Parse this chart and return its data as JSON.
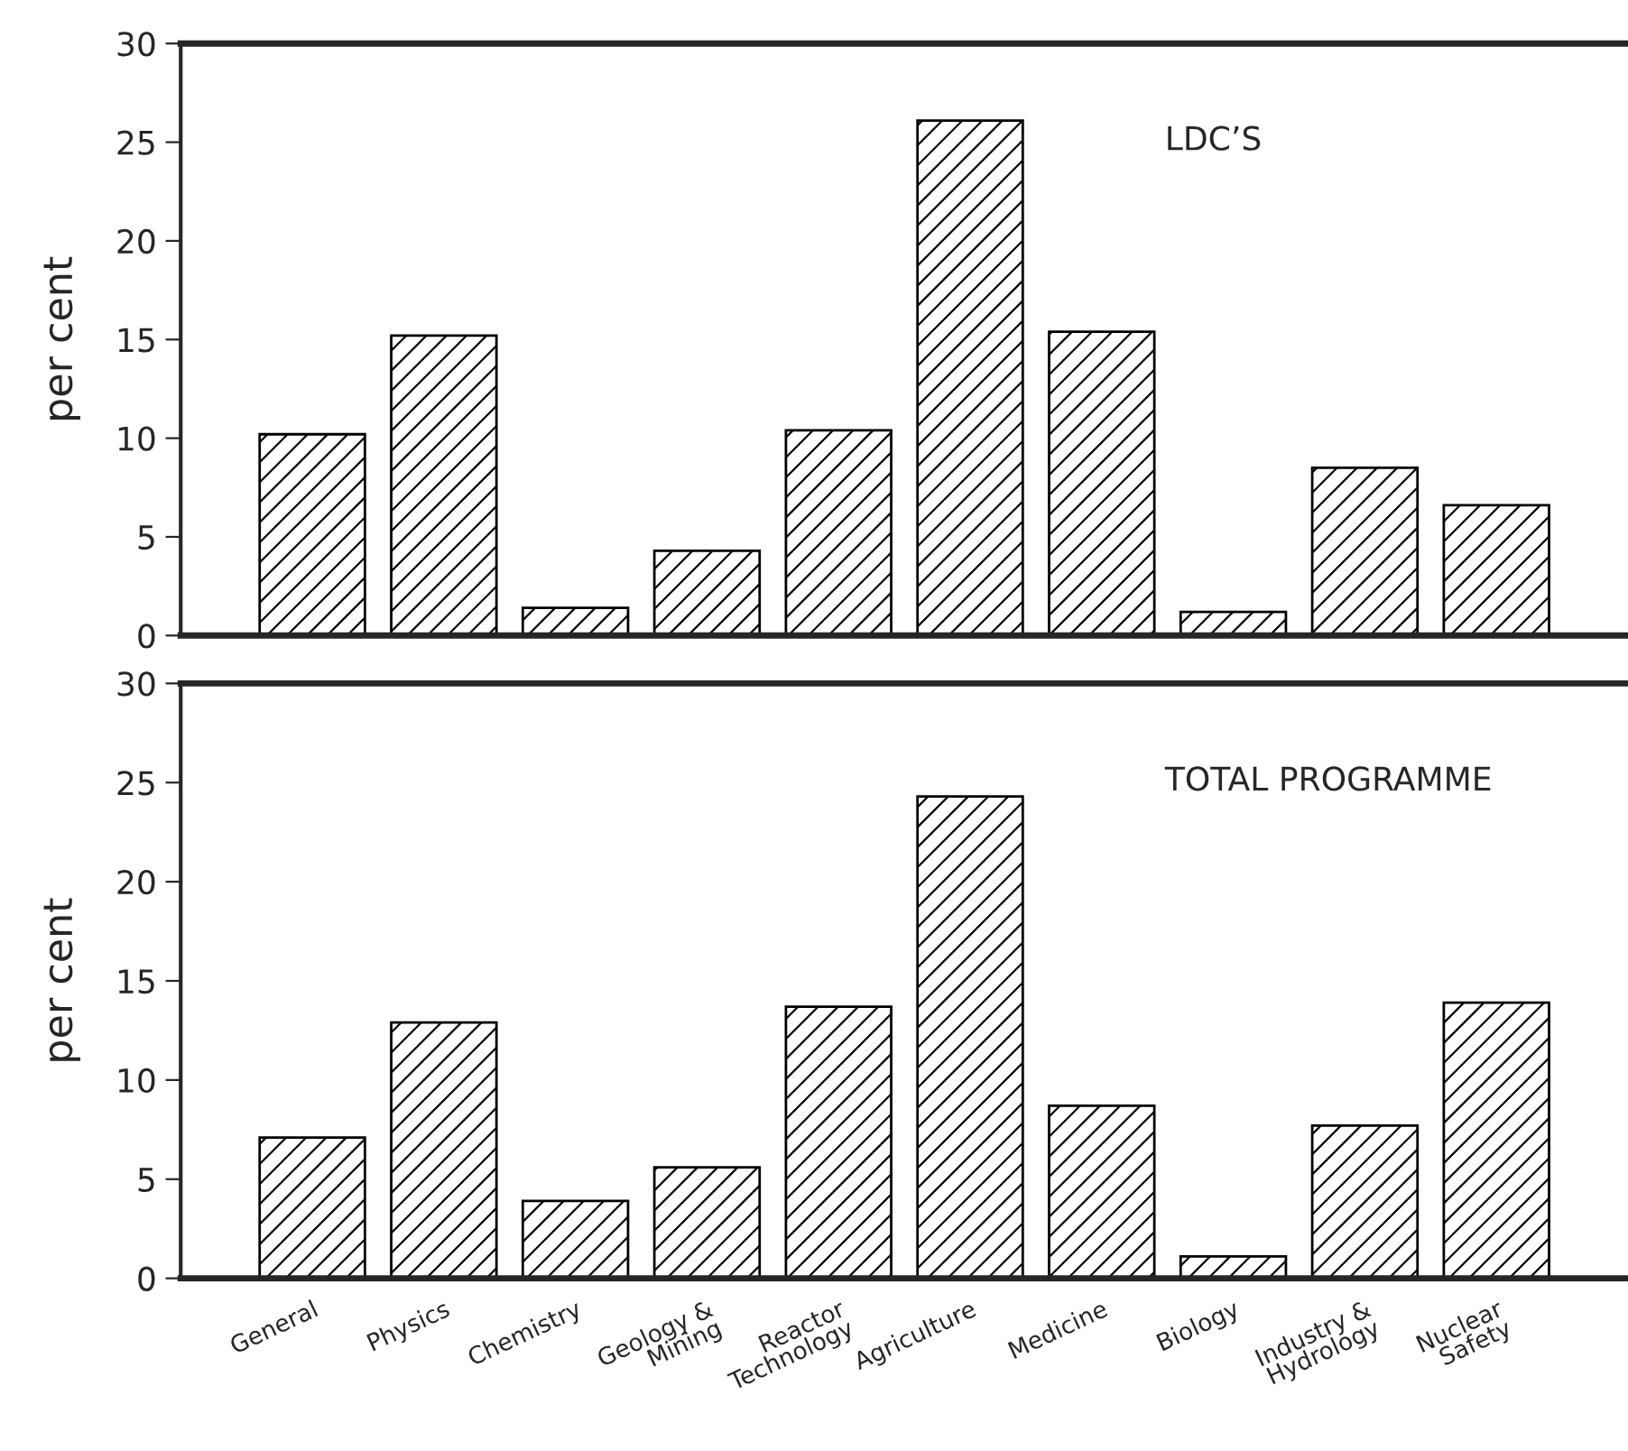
{
  "chart_data": [
    {
      "type": "bar",
      "title": "LDC’S",
      "ylabel": "per cent",
      "categories": [
        null,
        null,
        null,
        null,
        null,
        null,
        null,
        null,
        null,
        null
      ],
      "series": [
        {
          "color": "#000000",
          "values": [
            10.2,
            15.2,
            1.4,
            4.3,
            10.4,
            26.1,
            15.4,
            1.2,
            8.5,
            6.6
          ]
        }
      ],
      "ylim": [
        0,
        30
      ],
      "yticks": [
        0,
        5,
        10,
        15,
        20,
        25,
        30
      ],
      "tick_labels": "y",
      "grid": false
    },
    {
      "type": "bar",
      "title": "TOTAL PROGRAMME",
      "ylabel": "per cent",
      "categories": [
        "General",
        "Physics",
        "Chemistry",
        "Geology &\nMining",
        "Reactor\nTechnology",
        "Agriculture",
        "Medicine",
        "Biology",
        "Industry &\nHydrology",
        "Nuclear\nSafety"
      ],
      "series": [
        {
          "color": "#000000",
          "values": [
            7.1,
            12.9,
            3.9,
            5.6,
            13.7,
            24.3,
            8.7,
            1.1,
            7.7,
            13.9
          ]
        }
      ],
      "ylim": [
        0,
        30
      ],
      "yticks": [
        0,
        5,
        10,
        15,
        20,
        25,
        30
      ],
      "grid": false
    }
  ]
}
